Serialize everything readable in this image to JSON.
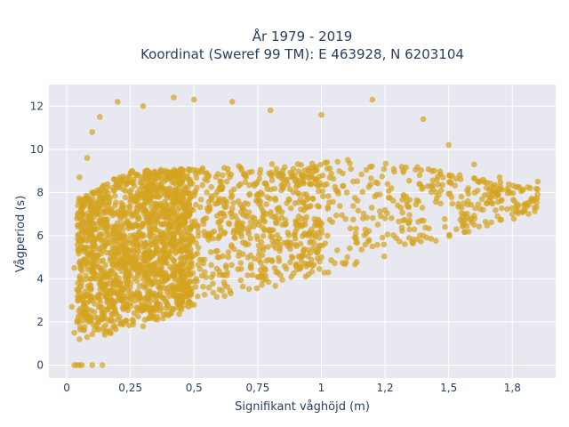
{
  "chart_data": {
    "type": "scatter",
    "title_line1": "År 1979 - 2019",
    "title_line2": "Koordinat (Sweref 99 TM): E 463928, N 6203104",
    "xlabel": "Signifikant våghöjd (m)",
    "ylabel": "Vågperiod (s)",
    "xlim": [
      -0.07,
      1.92
    ],
    "ylim": [
      -0.6,
      13.0
    ],
    "x_ticks": [
      0,
      0.25,
      0.5,
      0.75,
      1,
      1.25,
      1.5,
      1.75
    ],
    "x_tick_labels": [
      "0",
      "0,25",
      "0,5",
      "0,75",
      "1",
      "1,2",
      "1,5",
      "1,8"
    ],
    "y_ticks": [
      0,
      2,
      4,
      6,
      8,
      10,
      12
    ],
    "y_tick_labels": [
      "0",
      "2",
      "4",
      "6",
      "8",
      "10",
      "12"
    ],
    "grid": true,
    "marker_color": "#d4a420",
    "plot_background": "#e8e8f0",
    "x_range_of_points": [
      0.02,
      1.87
    ],
    "y_range_of_points": [
      0,
      12.5
    ],
    "points": [
      [
        0.03,
        0
      ],
      [
        0.04,
        0
      ],
      [
        0.05,
        0
      ],
      [
        0.06,
        0
      ],
      [
        0.1,
        0
      ],
      [
        0.14,
        0
      ],
      [
        0.02,
        2.7
      ],
      [
        0.03,
        1.5
      ],
      [
        0.05,
        1.2
      ],
      [
        0.08,
        1.3
      ],
      [
        0.15,
        1.4
      ],
      [
        0.3,
        1.8
      ],
      [
        0.4,
        2.3
      ],
      [
        0.5,
        2.8
      ],
      [
        0.6,
        3.5
      ],
      [
        0.75,
        4.1
      ],
      [
        0.9,
        4.6
      ],
      [
        1.0,
        5.0
      ],
      [
        1.2,
        5.5
      ],
      [
        1.4,
        6.0
      ],
      [
        1.6,
        6.5
      ],
      [
        1.75,
        7.0
      ],
      [
        1.85,
        8.5
      ],
      [
        1.82,
        8.2
      ],
      [
        1.7,
        8.7
      ],
      [
        1.6,
        9.3
      ],
      [
        1.5,
        10.2
      ],
      [
        1.4,
        11.4
      ],
      [
        1.2,
        12.3
      ],
      [
        1.0,
        11.6
      ],
      [
        0.8,
        11.8
      ],
      [
        0.65,
        12.2
      ],
      [
        0.5,
        12.3
      ],
      [
        0.42,
        12.4
      ],
      [
        0.3,
        12.0
      ],
      [
        0.2,
        12.2
      ],
      [
        0.13,
        11.5
      ],
      [
        0.1,
        10.8
      ],
      [
        0.08,
        9.6
      ],
      [
        0.05,
        8.7
      ],
      [
        0.04,
        6.8
      ],
      [
        0.03,
        4.5
      ],
      [
        0.12,
        5.0
      ],
      [
        0.25,
        6.0
      ],
      [
        0.35,
        7.0
      ],
      [
        0.45,
        5.5
      ],
      [
        0.55,
        8.0
      ],
      [
        0.7,
        7.5
      ],
      [
        0.85,
        8.2
      ],
      [
        0.95,
        9.0
      ],
      [
        1.1,
        8.0
      ],
      [
        1.3,
        7.4
      ],
      [
        1.45,
        8.0
      ],
      [
        1.55,
        7.8
      ],
      [
        0.2,
        3.0
      ],
      [
        0.3,
        4.0
      ],
      [
        0.6,
        6.0
      ],
      [
        0.9,
        6.5
      ],
      [
        1.25,
        6.8
      ],
      [
        1.65,
        7.5
      ]
    ]
  }
}
